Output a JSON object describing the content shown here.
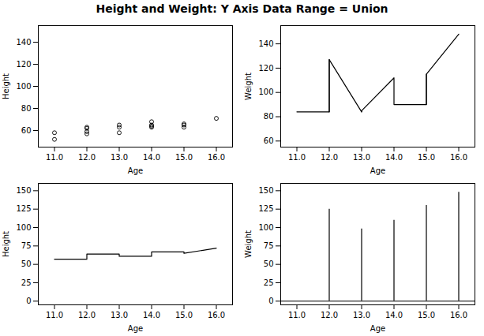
{
  "title": "Height and Weight: Y Axis Data Range = Union",
  "chart_data": [
    {
      "type": "scatter",
      "marker": "circle",
      "color": "#000000",
      "grid": false,
      "x": [
        11,
        11,
        12,
        12,
        12,
        12,
        13,
        13,
        13,
        14,
        14,
        14,
        14,
        15,
        15,
        15,
        16
      ],
      "values": [
        52,
        58,
        57,
        59,
        62,
        63,
        58,
        63,
        65,
        63,
        64,
        65,
        68,
        63,
        65,
        66,
        71
      ],
      "xlabel": "Age",
      "ylabel": "Height",
      "xlim": [
        10.5,
        16.5
      ],
      "xticks": [
        11,
        12,
        13,
        14,
        15,
        16
      ],
      "ylim": [
        45,
        155
      ],
      "yticks": [
        60,
        80,
        100,
        120,
        140
      ]
    },
    {
      "type": "line",
      "color": "#000000",
      "grid": false,
      "series": [
        {
          "x": [
            11,
            12,
            12,
            13,
            13,
            14,
            14,
            15,
            15,
            16
          ],
          "values": [
            84,
            84,
            127,
            84,
            85,
            112,
            90,
            90,
            115,
            148
          ]
        },
        {
          "x": [
            12,
            12
          ],
          "values": [
            84,
            127
          ]
        },
        {
          "x": [
            13,
            13
          ],
          "values": [
            84,
            85
          ]
        },
        {
          "x": [
            15,
            15
          ],
          "values": [
            90,
            115
          ]
        }
      ],
      "xlabel": "Age",
      "ylabel": "Weight",
      "xlim": [
        10.5,
        16.5
      ],
      "xticks": [
        11,
        12,
        13,
        14,
        15,
        16
      ],
      "ylim": [
        55,
        155
      ],
      "yticks": [
        60,
        80,
        100,
        120,
        140
      ]
    },
    {
      "type": "line",
      "color": "#000000",
      "grid": false,
      "series": [
        {
          "x": [
            11,
            12,
            12,
            13,
            13,
            14,
            14,
            15,
            15,
            16
          ],
          "values": [
            57,
            57,
            64,
            64,
            61,
            61,
            67,
            67,
            65,
            72
          ]
        }
      ],
      "xlabel": "Age",
      "ylabel": "Height",
      "xlim": [
        10.5,
        16.5
      ],
      "xticks": [
        11,
        12,
        13,
        14,
        15,
        16
      ],
      "ylim": [
        -5,
        160
      ],
      "yticks": [
        0,
        25,
        50,
        75,
        100,
        125,
        150
      ]
    },
    {
      "type": "stem",
      "color": "#000000",
      "grid": false,
      "baseline": 0,
      "x": [
        12,
        13,
        14,
        15,
        16
      ],
      "values": [
        125,
        98,
        110,
        130,
        148
      ],
      "xlabel": "Age",
      "ylabel": "Weight",
      "xlim": [
        10.5,
        16.5
      ],
      "xticks": [
        11,
        12,
        13,
        14,
        15,
        16
      ],
      "ylim": [
        -5,
        160
      ],
      "yticks": [
        0,
        25,
        50,
        75,
        100,
        125,
        150
      ]
    }
  ]
}
